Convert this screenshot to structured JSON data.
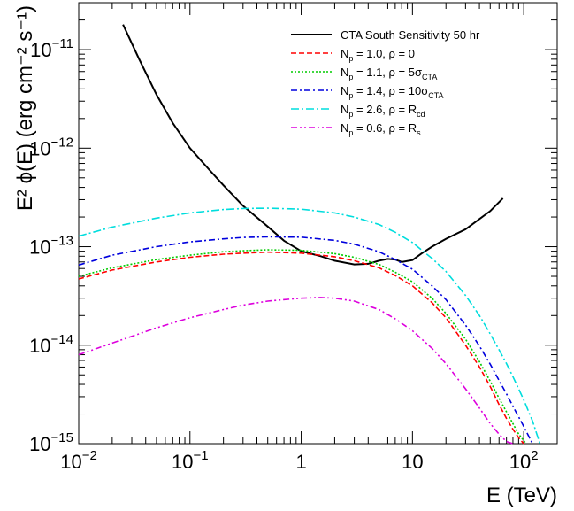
{
  "chart_data": {
    "type": "line",
    "title": "",
    "xlabel": "E (TeV)",
    "ylabel": "E² ϕ(E) (erg cm⁻² s⁻¹)",
    "xscale": "log",
    "yscale": "log",
    "xlim": [
      0.01,
      200
    ],
    "ylim": [
      1e-15,
      3e-11
    ],
    "grid": false,
    "legend_position": "top-right",
    "x_ticks": [
      {
        "value": 0.01,
        "base": "10",
        "exp": "−2"
      },
      {
        "value": 0.1,
        "base": "10",
        "exp": "−1"
      },
      {
        "value": 1,
        "base": "1",
        "exp": ""
      },
      {
        "value": 10,
        "base": "10",
        "exp": ""
      },
      {
        "value": 100,
        "base": "10",
        "exp": "2"
      }
    ],
    "y_ticks": [
      {
        "value": 1e-15,
        "base": "10",
        "exp": "−15"
      },
      {
        "value": 1e-14,
        "base": "10",
        "exp": "−14"
      },
      {
        "value": 1e-13,
        "base": "10",
        "exp": "−13"
      },
      {
        "value": 1e-12,
        "base": "10",
        "exp": "−12"
      },
      {
        "value": 1e-11,
        "base": "10",
        "exp": "−11"
      }
    ],
    "series": [
      {
        "name": "CTA South Sensitivity 50 hr",
        "color": "#000000",
        "dash": "",
        "x": [
          0.025,
          0.035,
          0.05,
          0.07,
          0.1,
          0.15,
          0.2,
          0.3,
          0.5,
          0.7,
          1.0,
          1.5,
          2,
          3,
          4,
          5,
          6,
          7,
          8,
          10,
          12,
          15,
          20,
          30,
          50,
          65
        ],
        "y": [
          1.8e-11,
          8e-12,
          3.5e-12,
          1.8e-12,
          1e-12,
          6e-13,
          4.2e-13,
          2.6e-13,
          1.6e-13,
          1.15e-13,
          9e-14,
          8e-14,
          7.2e-14,
          6.6e-14,
          6.7e-14,
          7.2e-14,
          7.5e-14,
          7.4e-14,
          7e-14,
          7.3e-14,
          8.5e-14,
          1e-13,
          1.2e-13,
          1.5e-13,
          2.3e-13,
          3.1e-13
        ]
      },
      {
        "name": "N_p = 1.0, ρ = 0",
        "color": "#ff0000",
        "dash": "6,3",
        "x": [
          0.01,
          0.02,
          0.05,
          0.1,
          0.2,
          0.3,
          0.5,
          1,
          2,
          3,
          5,
          7,
          10,
          15,
          20,
          30,
          40,
          50,
          60,
          70,
          80,
          90,
          100
        ],
        "y": [
          4.7e-14,
          5.8e-14,
          7e-14,
          7.8e-14,
          8.4e-14,
          8.6e-14,
          8.8e-14,
          8.6e-14,
          7.9e-14,
          7.2e-14,
          6.1e-14,
          5.1e-14,
          4e-14,
          2.7e-14,
          1.9e-14,
          1e-14,
          6e-15,
          3.8e-15,
          2.5e-15,
          1.8e-15,
          1.4e-15,
          1.15e-15,
          1e-15
        ]
      },
      {
        "name": "N_p = 1.1, ρ = 5σ",
        "name_sub": "CTA",
        "color": "#00cc00",
        "dash": "2,2",
        "x": [
          0.01,
          0.02,
          0.05,
          0.1,
          0.2,
          0.3,
          0.5,
          1,
          2,
          3,
          5,
          7,
          10,
          15,
          20,
          30,
          40,
          50,
          60,
          70,
          80,
          90,
          105
        ],
        "y": [
          5e-14,
          6.1e-14,
          7.4e-14,
          8.2e-14,
          8.9e-14,
          9.1e-14,
          9.3e-14,
          9.2e-14,
          8.5e-14,
          7.8e-14,
          6.6e-14,
          5.5e-14,
          4.4e-14,
          3e-14,
          2.1e-14,
          1.15e-14,
          6.8e-15,
          4.3e-15,
          2.9e-15,
          2.1e-15,
          1.6e-15,
          1.25e-15,
          1e-15
        ]
      },
      {
        "name": "N_p = 1.4, ρ = 10σ",
        "name_sub": "CTA",
        "color": "#0000dd",
        "dash": "7,3,2,3",
        "x": [
          0.01,
          0.02,
          0.05,
          0.1,
          0.2,
          0.3,
          0.5,
          1,
          2,
          3,
          5,
          7,
          10,
          15,
          20,
          30,
          40,
          50,
          60,
          70,
          80,
          100,
          120
        ],
        "y": [
          6.5e-14,
          8.2e-14,
          1e-13,
          1.12e-13,
          1.2e-13,
          1.24e-13,
          1.26e-13,
          1.25e-13,
          1.16e-13,
          1.06e-13,
          8.9e-14,
          7.4e-14,
          5.9e-14,
          4e-14,
          2.9e-14,
          1.6e-14,
          9.8e-15,
          6.4e-15,
          4.4e-15,
          3.2e-15,
          2.4e-15,
          1.5e-15,
          1e-15
        ]
      },
      {
        "name": "N_p = 2.6, ρ = R",
        "name_sub": "cd",
        "color": "#00dddd",
        "dash": "9,3,2,3",
        "x": [
          0.01,
          0.02,
          0.05,
          0.1,
          0.2,
          0.3,
          0.5,
          1,
          2,
          3,
          5,
          7,
          10,
          15,
          20,
          30,
          40,
          50,
          60,
          70,
          80,
          100,
          120,
          140
        ],
        "y": [
          1.28e-13,
          1.58e-13,
          1.95e-13,
          2.2e-13,
          2.38e-13,
          2.44e-13,
          2.46e-13,
          2.4e-13,
          2.2e-13,
          2e-13,
          1.68e-13,
          1.4e-13,
          1.1e-13,
          7.6e-14,
          5.6e-14,
          3.2e-14,
          2e-14,
          1.3e-14,
          9e-15,
          6.5e-15,
          4.8e-15,
          2.8e-15,
          1.7e-15,
          1e-15
        ]
      },
      {
        "name": "N_p = 0.6, ρ = R",
        "name_sub": "s",
        "color": "#dd00dd",
        "dash": "7,3,2,3,2,3",
        "x": [
          0.01,
          0.02,
          0.05,
          0.1,
          0.2,
          0.3,
          0.5,
          1,
          1.5,
          2,
          3,
          5,
          7,
          10,
          15,
          20,
          30,
          40,
          50,
          60,
          70,
          80
        ],
        "y": [
          8e-15,
          1.05e-14,
          1.5e-14,
          1.9e-14,
          2.3e-14,
          2.55e-14,
          2.8e-14,
          3e-14,
          3.05e-14,
          3e-14,
          2.8e-14,
          2.3e-14,
          1.85e-14,
          1.4e-14,
          9.3e-15,
          6.5e-15,
          3.6e-15,
          2.3e-15,
          1.6e-15,
          1.25e-15,
          1.05e-15,
          1e-15
        ]
      }
    ]
  }
}
